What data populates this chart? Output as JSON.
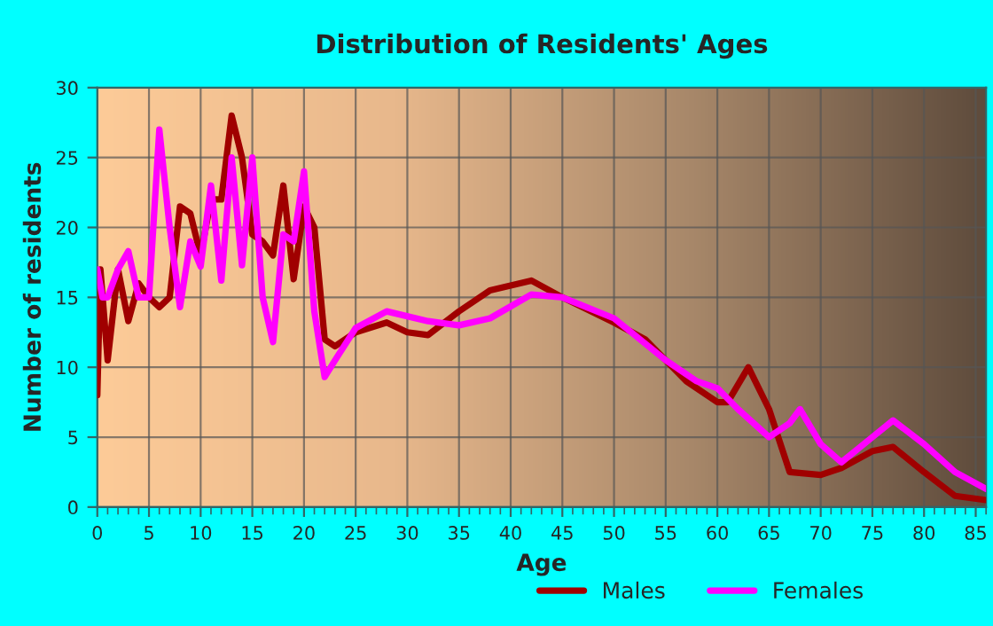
{
  "chart_data": {
    "type": "line",
    "title": "Distribution of Residents' Ages",
    "xlabel": "Age",
    "ylabel": "Number of residents",
    "series": [
      {
        "name": "Males",
        "color": "#a00000",
        "x": [
          0,
          0.3,
          1,
          2,
          3,
          4,
          5,
          6,
          7,
          8,
          9,
          10,
          11,
          12,
          13,
          14,
          15,
          16,
          17,
          18,
          19,
          20,
          21,
          22,
          23,
          25,
          28,
          30,
          32,
          35,
          38,
          42,
          45,
          50,
          53,
          57,
          60,
          61,
          63,
          65,
          67,
          70,
          72,
          75,
          77,
          80,
          83,
          86
        ],
        "values": [
          8,
          17,
          10.5,
          17,
          13.3,
          16,
          15,
          14.3,
          15,
          21.5,
          21,
          18,
          22,
          22,
          28,
          25,
          19.5,
          19,
          18,
          23,
          16.3,
          21.5,
          20,
          12,
          11.5,
          12.5,
          13.2,
          12.5,
          12.3,
          14,
          15.5,
          16.2,
          15,
          13.2,
          12,
          9,
          7.5,
          7.5,
          10,
          7,
          2.5,
          2.3,
          2.8,
          4,
          4.3,
          2.5,
          0.8,
          0.5
        ]
      },
      {
        "name": "Females",
        "color": "#ff00ff",
        "x": [
          0,
          0.5,
          1,
          2,
          3,
          4,
          5,
          6,
          7,
          8,
          9,
          10,
          11,
          12,
          13,
          14,
          15,
          16,
          17,
          18,
          19,
          20,
          21,
          22,
          23,
          25,
          28,
          32,
          35,
          38,
          42,
          45,
          50,
          55,
          58,
          60,
          62,
          65,
          67,
          68,
          70,
          72,
          75,
          77,
          80,
          83,
          86
        ],
        "values": [
          17,
          15,
          15,
          17,
          18.3,
          15,
          15,
          27,
          20,
          14.3,
          19,
          17.2,
          23,
          16.2,
          25,
          17.3,
          25,
          15,
          11.8,
          19.5,
          19,
          24,
          14,
          9.3,
          10.5,
          12.8,
          14,
          13.3,
          13,
          13.5,
          15.2,
          15,
          13.5,
          10.5,
          9,
          8.5,
          7,
          5,
          6,
          7,
          4.5,
          3.2,
          5,
          6.2,
          4.5,
          2.5,
          1.3
        ]
      }
    ],
    "xlim": [
      0,
      86
    ],
    "xticks": [
      0,
      5,
      10,
      15,
      20,
      25,
      30,
      35,
      40,
      45,
      50,
      55,
      60,
      65,
      70,
      75,
      80,
      85
    ],
    "ylim": [
      0,
      30
    ],
    "yticks": [
      0,
      5,
      10,
      15,
      20,
      25,
      30
    ],
    "grid": true,
    "legend": "bottom",
    "line_style": "solid",
    "marker": "none"
  }
}
